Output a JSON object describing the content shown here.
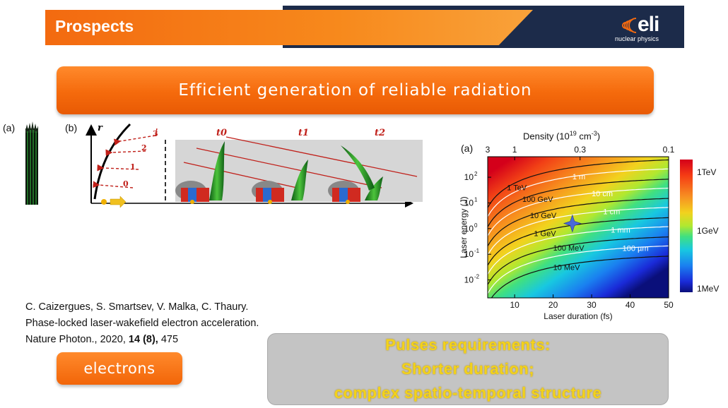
{
  "header": {
    "title": "Prospects",
    "logo_text": "eli",
    "logo_subtitle": "nuclear physics"
  },
  "banner": {
    "text": "Efficient generation of reliable radiation"
  },
  "figures": {
    "left_panel_label": "(a)",
    "middle_panel_label": "(b)",
    "right_panel_label": "(a)",
    "axis_r": "r",
    "ray_labels": [
      "3",
      "2",
      "1",
      "0"
    ],
    "time_labels": [
      "t0",
      "t1",
      "t2"
    ]
  },
  "chart_data": {
    "type": "heatmap",
    "title": "",
    "xlabel": "Laser duration (fs)",
    "ylabel": "Laser energy (J)",
    "top_axis_label": "Density (10",
    "top_axis_exp": "19",
    "top_axis_unit": " cm",
    "top_axis_unit_exp": "-3",
    "top_axis_close": ")",
    "xlim": [
      3,
      50
    ],
    "ylim_log10": [
      -2.7,
      2.8
    ],
    "x_ticks": [
      10,
      20,
      30,
      40,
      50
    ],
    "y_tick_exponents": [
      2,
      1,
      0,
      -1,
      -2
    ],
    "y_tick_base": "10",
    "top_ticks": [
      {
        "x": 3,
        "label": "3"
      },
      {
        "x": 10,
        "label": "1"
      },
      {
        "x": 27,
        "label": "0.3"
      },
      {
        "x": 50,
        "label": "0.1"
      }
    ],
    "energy_contours": [
      {
        "label": "1 TeV",
        "log_e0": 2.8
      },
      {
        "label": "100 GeV",
        "log_e0": 2.05
      },
      {
        "label": "10 GeV",
        "log_e0": 1.3
      },
      {
        "label": "1 GeV",
        "log_e0": 0.55
      },
      {
        "label": "100 MeV",
        "log_e0": -0.2
      },
      {
        "label": "10 MeV",
        "log_e0": -0.95
      }
    ],
    "length_contours": [
      {
        "label": "1 m",
        "log_e0": 2.45
      },
      {
        "label": "10 cm",
        "log_e0": 1.7
      },
      {
        "label": "1 cm",
        "log_e0": 0.95
      },
      {
        "label": "1 mm",
        "log_e0": 0.2
      },
      {
        "label": "100 µm",
        "log_e0": -0.55
      }
    ],
    "marker": {
      "x": 25,
      "log_y": 0.2
    },
    "colorbar": {
      "labels": [
        "1TeV",
        "1GeV",
        "1MeV"
      ]
    }
  },
  "citation": {
    "authors": "C. Caizergues, S. Smartsev, V. Malka, C. Thaury.",
    "title": "Phase-locked laser-wakefield electron acceleration.",
    "journal": "Nature Photon., 2020, ",
    "volume": "14 (8),",
    "pages": " 475"
  },
  "electrons_button": {
    "label": "electrons"
  },
  "requirements": {
    "lines": [
      "Pulses requirements:",
      "Shorter duration;",
      "complex spatio-temporal structure"
    ]
  }
}
